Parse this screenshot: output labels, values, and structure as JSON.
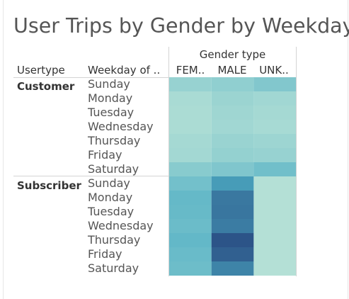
{
  "chart_data": {
    "type": "heatmap",
    "title": "User Trips by Gender by Weekday",
    "column_group_label": "Gender type",
    "row_headers": [
      "Usertype",
      "Weekday of .."
    ],
    "columns": [
      "FEM..",
      "MALE",
      "UNK.."
    ],
    "groups": [
      "Customer",
      "Subscriber"
    ],
    "days": [
      "Sunday",
      "Monday",
      "Tuesday",
      "Wednesday",
      "Thursday",
      "Friday",
      "Saturday"
    ],
    "intensity": {
      "Customer": [
        [
          0.2,
          0.23,
          0.3
        ],
        [
          0.11,
          0.18,
          0.15
        ],
        [
          0.1,
          0.16,
          0.13
        ],
        [
          0.1,
          0.15,
          0.12
        ],
        [
          0.13,
          0.19,
          0.17
        ],
        [
          0.14,
          0.21,
          0.2
        ],
        [
          0.27,
          0.31,
          0.38
        ]
      ],
      "Subscriber": [
        [
          0.37,
          0.64,
          0.06
        ],
        [
          0.44,
          0.82,
          0.06
        ],
        [
          0.43,
          0.83,
          0.06
        ],
        [
          0.41,
          0.8,
          0.06
        ],
        [
          0.45,
          1.0,
          0.06
        ],
        [
          0.42,
          0.94,
          0.06
        ],
        [
          0.4,
          0.76,
          0.06
        ]
      ]
    },
    "color_scale": {
      "low": "#c0e6d8",
      "mid": "#4eaec4",
      "high": "#2c5488"
    }
  }
}
